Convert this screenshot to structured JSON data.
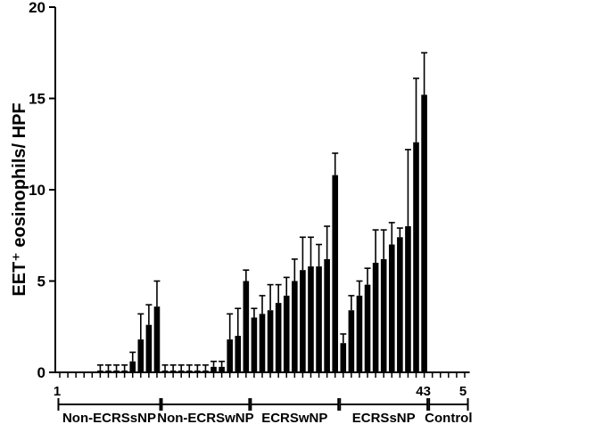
{
  "chart_data": {
    "type": "bar",
    "ylabel": "EET⁺ eosinophils/ HPF",
    "ylim": [
      0,
      20
    ],
    "yticks": [
      0,
      5,
      10,
      15,
      20
    ],
    "grid": false,
    "colors": {
      "bar": "#000000",
      "axis": "#000000"
    },
    "values": [
      0,
      0,
      0,
      0,
      0,
      0.1,
      0.1,
      0.1,
      0.1,
      0.6,
      1.8,
      2.6,
      3.6,
      0.1,
      0.1,
      0.1,
      0.1,
      0.1,
      0.1,
      0.3,
      0.3,
      1.8,
      2.0,
      5.0,
      3.0,
      3.2,
      3.4,
      3.8,
      4.2,
      5.0,
      5.6,
      5.8,
      5.8,
      6.2,
      10.8,
      1.6,
      3.4,
      4.2,
      4.8,
      6.0,
      6.2,
      7.0,
      7.4,
      8.0,
      12.6,
      15.2,
      0,
      0,
      0,
      0,
      0
    ],
    "errors": [
      0,
      0,
      0,
      0,
      0,
      0.3,
      0.3,
      0.3,
      0.3,
      0.5,
      1.4,
      1.1,
      1.4,
      0.3,
      0.3,
      0.3,
      0.3,
      0.3,
      0.3,
      0.3,
      0.3,
      1.4,
      1.5,
      0.6,
      0.5,
      1.0,
      1.4,
      1.0,
      1.0,
      1.2,
      1.8,
      1.6,
      1.2,
      1.8,
      1.2,
      0.5,
      0.8,
      0.8,
      0.9,
      1.8,
      1.6,
      1.2,
      0.5,
      4.2,
      3.5,
      2.3,
      0,
      0,
      0,
      0,
      0
    ],
    "groups": [
      {
        "name": "Non-ECRSsNP",
        "count": 13
      },
      {
        "name": "Non-ECRSwNP",
        "count": 11
      },
      {
        "name": "ECRSwNP",
        "count": 11
      },
      {
        "name": "ECRSsNP",
        "count": 11
      },
      {
        "name": "Control",
        "count": 5
      }
    ],
    "index_labels": [
      {
        "text": "1",
        "position": 1
      },
      {
        "text": "43",
        "position": 43
      },
      {
        "text": "5",
        "position": 5
      }
    ]
  }
}
